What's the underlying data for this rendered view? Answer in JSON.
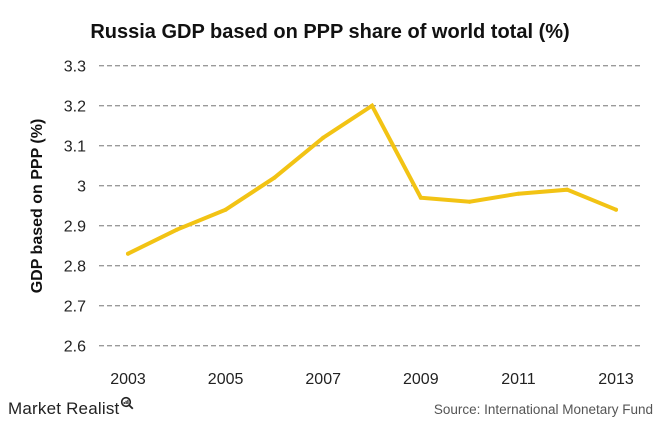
{
  "chart_data": {
    "type": "line",
    "title": "Russia GDP based on PPP share of world total (%)",
    "xlabel": "",
    "ylabel": "GDP based on PPP (%)",
    "x": [
      2003,
      2004,
      2005,
      2006,
      2007,
      2008,
      2009,
      2010,
      2011,
      2012,
      2013
    ],
    "x_tick_labels": [
      "2003",
      "2005",
      "2007",
      "2009",
      "2011",
      "2013"
    ],
    "y_tick_labels": [
      "2.6",
      "2.7",
      "2.8",
      "2.9",
      "3",
      "3.1",
      "3.2",
      "3.3"
    ],
    "ylim": [
      2.6,
      3.3
    ],
    "xlim": [
      2003,
      2013
    ],
    "grid": "horizontal dashed",
    "legend": "none",
    "series": [
      {
        "name": "Russia GDP based on PPP share of world total",
        "color": "#F2C314",
        "values": [
          2.83,
          2.89,
          2.94,
          3.02,
          3.12,
          3.2,
          2.97,
          2.96,
          2.98,
          2.99,
          2.94
        ]
      }
    ]
  },
  "footer": {
    "brand": "Market Realist",
    "brand_icon": "magnifier-chart-icon",
    "source": "Source: International Monetary Fund"
  }
}
